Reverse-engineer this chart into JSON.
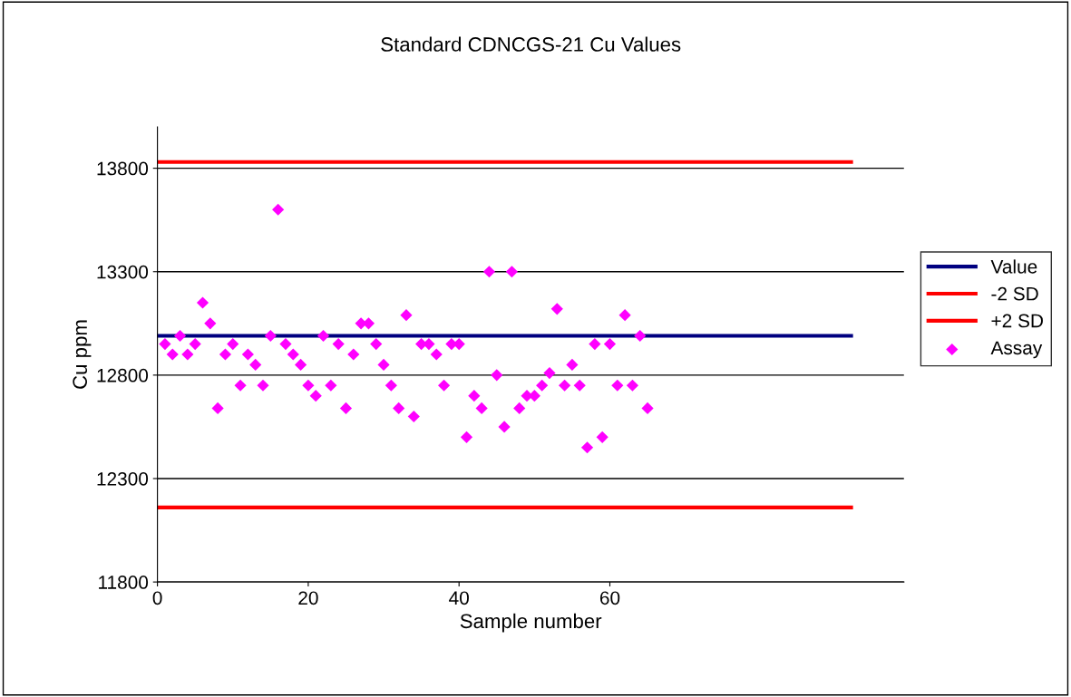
{
  "chart_data": {
    "type": "line",
    "title": "Standard CDNCGS-21 Cu Values",
    "xlabel": "Sample number",
    "ylabel": "Cu ppm",
    "xlim": [
      0,
      99
    ],
    "xticks": [
      0,
      20,
      40,
      60
    ],
    "ylim": [
      11800,
      14000
    ],
    "yticks": [
      11800,
      12300,
      12800,
      13300,
      13800
    ],
    "grid": "y",
    "legend": "right",
    "series": [
      {
        "name": "Value",
        "color": "#000080",
        "x": [
          0,
          92
        ],
        "values": [
          12990,
          12990
        ]
      },
      {
        "name": "-2 SD",
        "color": "#ff0000",
        "x": [
          0,
          92
        ],
        "values": [
          12160,
          12160
        ]
      },
      {
        "name": "+2 SD",
        "color": "#ff0000",
        "x": [
          0,
          92
        ],
        "values": [
          13830,
          13830
        ]
      },
      {
        "name": "Assay",
        "type": "scatter",
        "marker": "diamond",
        "color": "#ff00ff",
        "x": [
          1,
          2,
          3,
          4,
          5,
          6,
          7,
          8,
          9,
          10,
          11,
          12,
          13,
          14,
          15,
          16,
          17,
          18,
          19,
          20,
          21,
          22,
          23,
          24,
          25,
          26,
          27,
          28,
          29,
          30,
          31,
          32,
          33,
          34,
          35,
          36,
          37,
          38,
          39,
          40,
          41,
          42,
          43,
          44,
          45,
          46,
          47,
          48,
          49,
          50,
          51,
          52,
          53,
          54,
          55,
          56,
          57,
          58,
          59,
          60,
          61,
          62,
          63,
          64,
          65
        ],
        "values": [
          12950,
          12900,
          12990,
          12900,
          12950,
          13150,
          13050,
          12640,
          12900,
          12950,
          12750,
          12900,
          12850,
          12750,
          12990,
          13600,
          12950,
          12900,
          12850,
          12750,
          12700,
          12990,
          12750,
          12950,
          12640,
          12900,
          13050,
          13050,
          12950,
          12850,
          12750,
          12640,
          13090,
          12600,
          12950,
          12950,
          12900,
          12750,
          12950,
          12950,
          12500,
          12700,
          12640,
          13300,
          12800,
          12550,
          13300,
          12640,
          12700,
          12700,
          12750,
          12810,
          13120,
          12750,
          12850,
          12750,
          12450,
          12950,
          12500,
          12950,
          12750,
          13090,
          12750,
          12990,
          12640
        ]
      }
    ]
  }
}
